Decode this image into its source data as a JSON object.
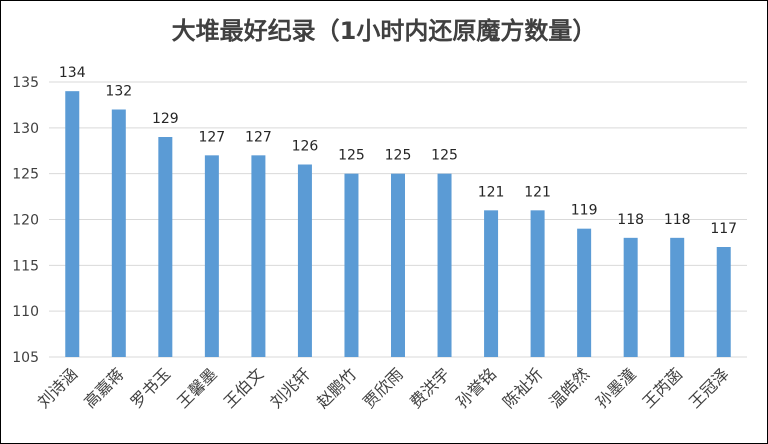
{
  "chart_data": {
    "type": "bar",
    "title": "大堆最好纪录（1小时内还原魔方数量）",
    "xlabel": "",
    "ylabel": "",
    "categories": [
      "刘诗涵",
      "高嘉蒋",
      "罗书玉",
      "王馨墨",
      "王伯文",
      "刘兆轩",
      "赵鹏竹",
      "贾欣雨",
      "费洪宇",
      "孙誉铭",
      "陈祉圻",
      "温皓然",
      "孙墨潼",
      "王芮菡",
      "王冠泽"
    ],
    "values": [
      134,
      132,
      129,
      127,
      127,
      126,
      125,
      125,
      125,
      121,
      121,
      119,
      118,
      118,
      117
    ],
    "ylim": [
      105,
      135
    ],
    "yticks": [
      105,
      110,
      115,
      120,
      125,
      130,
      135
    ],
    "grid": true,
    "legend": "none",
    "bar_color": "#5B9BD5",
    "grid_color": "#D9D9D9"
  }
}
